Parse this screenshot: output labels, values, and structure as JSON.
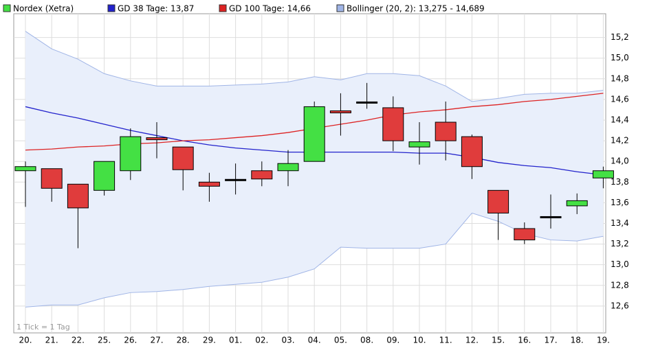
{
  "chart_data": {
    "type": "candlestick",
    "note": "1 Tick = 1 Tag",
    "categories": [
      "20.",
      "21.",
      "22.",
      "25.",
      "26.",
      "27.",
      "28.",
      "29.",
      "01.",
      "02.",
      "03.",
      "04.",
      "05.",
      "08.",
      "09.",
      "10.",
      "11.",
      "12.",
      "15.",
      "16.",
      "17.",
      "18.",
      "19."
    ],
    "ohlc": {
      "name": "Nordex (Xetra)",
      "up_color": "#44e044",
      "down_color": "#e03c3c",
      "open": [
        13.91,
        13.93,
        13.78,
        13.72,
        13.91,
        14.23,
        14.14,
        13.8,
        13.82,
        13.91,
        13.91,
        14.0,
        14.49,
        14.57,
        14.52,
        14.14,
        14.38,
        14.24,
        13.72,
        13.35,
        13.46,
        13.57,
        13.84
      ],
      "high": [
        14.0,
        13.93,
        13.78,
        14.0,
        14.32,
        14.38,
        14.14,
        13.89,
        13.98,
        14.0,
        14.11,
        14.58,
        14.66,
        14.76,
        14.63,
        14.38,
        14.58,
        14.26,
        13.72,
        13.41,
        13.68,
        13.69,
        13.95
      ],
      "low": [
        13.56,
        13.61,
        13.16,
        13.67,
        13.82,
        14.03,
        13.72,
        13.61,
        13.68,
        13.76,
        13.76,
        14.0,
        14.25,
        14.51,
        14.1,
        13.97,
        14.01,
        13.83,
        13.24,
        13.2,
        13.35,
        13.49,
        13.74
      ],
      "close": [
        13.95,
        13.74,
        13.55,
        14.0,
        14.24,
        14.21,
        13.92,
        13.76,
        13.82,
        13.83,
        13.98,
        14.53,
        14.47,
        14.57,
        14.2,
        14.19,
        14.2,
        13.95,
        13.5,
        13.24,
        13.46,
        13.62,
        13.91
      ]
    },
    "series": [
      {
        "name": "GD 38 Tage: 13,87",
        "color": "#2222cc",
        "values": [
          14.53,
          14.47,
          14.42,
          14.36,
          14.3,
          14.25,
          14.2,
          14.16,
          14.13,
          14.11,
          14.09,
          14.09,
          14.09,
          14.09,
          14.09,
          14.08,
          14.08,
          14.04,
          13.99,
          13.96,
          13.94,
          13.9,
          13.87
        ]
      },
      {
        "name": "GD 100 Tage: 14,66",
        "color": "#dd2222",
        "values": [
          14.11,
          14.12,
          14.14,
          14.15,
          14.17,
          14.18,
          14.2,
          14.21,
          14.23,
          14.25,
          14.28,
          14.32,
          14.36,
          14.4,
          14.45,
          14.48,
          14.5,
          14.53,
          14.55,
          14.58,
          14.6,
          14.63,
          14.66
        ]
      }
    ],
    "bollinger": {
      "name": "Bollinger (20, 2): 13,275 - 14,689",
      "color": "#9fb4e6",
      "fill": "#e9effb",
      "upper": [
        15.26,
        15.09,
        14.99,
        14.85,
        14.78,
        14.73,
        14.73,
        14.73,
        14.74,
        14.75,
        14.77,
        14.82,
        14.79,
        14.85,
        14.85,
        14.83,
        14.73,
        14.58,
        14.61,
        14.65,
        14.66,
        14.66,
        14.689
      ],
      "lower": [
        12.59,
        12.61,
        12.61,
        12.68,
        12.73,
        12.74,
        12.76,
        12.79,
        12.81,
        12.83,
        12.88,
        12.96,
        13.17,
        13.16,
        13.16,
        13.16,
        13.2,
        13.5,
        13.42,
        13.3,
        13.24,
        13.23,
        13.275
      ]
    },
    "ylim": [
      12.34,
      15.43
    ],
    "yticks": [
      {
        "value": 12.6,
        "label": "12,6"
      },
      {
        "value": 12.8,
        "label": "12,8"
      },
      {
        "value": 13.0,
        "label": "13,0"
      },
      {
        "value": 13.2,
        "label": "13,2"
      },
      {
        "value": 13.4,
        "label": "13,4"
      },
      {
        "value": 13.6,
        "label": "13,6"
      },
      {
        "value": 13.8,
        "label": "13,8"
      },
      {
        "value": 14.0,
        "label": "14,0"
      },
      {
        "value": 14.2,
        "label": "14,2"
      },
      {
        "value": 14.4,
        "label": "14,4"
      },
      {
        "value": 14.6,
        "label": "14,6"
      },
      {
        "value": 14.8,
        "label": "14,8"
      },
      {
        "value": 15.0,
        "label": "15,0"
      },
      {
        "value": 15.2,
        "label": "15,2"
      }
    ],
    "grid": true
  }
}
